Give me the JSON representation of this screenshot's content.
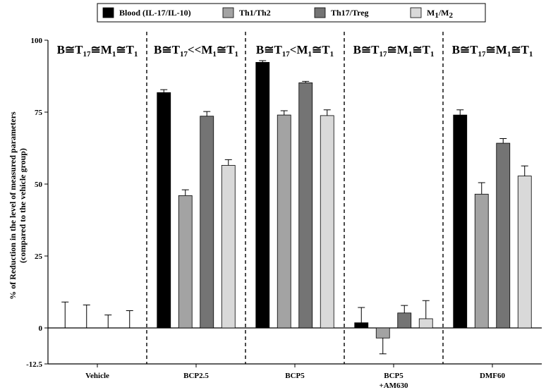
{
  "chart_data": {
    "type": "bar",
    "categories": [
      "Vehicle",
      "BCP2.5",
      "BCP5",
      "BCP5\n+AM630",
      "DMF60"
    ],
    "series": [
      {
        "name": "Blood (IL-17/IL-10)",
        "color": "#000000",
        "values": [
          0,
          81.8,
          92.3,
          1.8,
          74.0
        ],
        "errors": [
          9.0,
          1.0,
          0.6,
          5.3,
          1.8
        ]
      },
      {
        "name": "Th1/Th2",
        "color": "#a3a3a3",
        "values": [
          0,
          46.0,
          74.0,
          -3.5,
          46.5
        ],
        "errors": [
          8.0,
          2.0,
          1.5,
          5.5,
          4.0
        ]
      },
      {
        "name": "Th17/Treg",
        "color": "#747474",
        "values": [
          0,
          73.6,
          85.2,
          5.2,
          64.2
        ],
        "errors": [
          4.5,
          1.6,
          0.5,
          2.6,
          1.6
        ]
      },
      {
        "name": "M1/M2",
        "color": "#d9d9d9",
        "values": [
          0,
          56.5,
          73.8,
          3.2,
          52.8
        ],
        "errors": [
          6.0,
          2.0,
          2.0,
          6.3,
          3.5
        ]
      }
    ],
    "ylabel_line1": "% of Reduction in the level of measured parameters",
    "ylabel_line2": "(compared to the vehicle group)",
    "ylim": [
      -12.5,
      100
    ],
    "yticks": [
      "-12.5",
      "0",
      "25",
      "50",
      "75",
      "100"
    ],
    "ytick_values": [
      -12.5,
      0,
      25,
      50,
      75,
      100
    ],
    "legend_position": "top",
    "annotations": [
      {
        "group": 0,
        "parts": [
          "B≅T",
          "17",
          "≅M",
          "1",
          "≅T",
          "1"
        ]
      },
      {
        "group": 1,
        "parts": [
          "B≅T",
          "17",
          "<<M",
          "1",
          "≅T",
          "1"
        ]
      },
      {
        "group": 2,
        "parts": [
          "B≅T",
          "17",
          "<M",
          "1",
          "≅T",
          "1"
        ]
      },
      {
        "group": 3,
        "parts": [
          "B≅T",
          "17",
          "≅M",
          "1",
          "≅T",
          "1"
        ]
      },
      {
        "group": 4,
        "parts": [
          "B≅T",
          "17",
          "≅M",
          "1",
          "≅T",
          "1"
        ]
      }
    ],
    "legend_labels": [
      {
        "parts": [
          "Blood (IL-17/IL-10)"
        ]
      },
      {
        "parts": [
          "Th1/Th2"
        ]
      },
      {
        "parts": [
          "Th17/Treg"
        ]
      },
      {
        "parts": [
          "M",
          "1",
          "/M",
          "2"
        ]
      }
    ],
    "group_separators": "dashed",
    "grid": false
  }
}
